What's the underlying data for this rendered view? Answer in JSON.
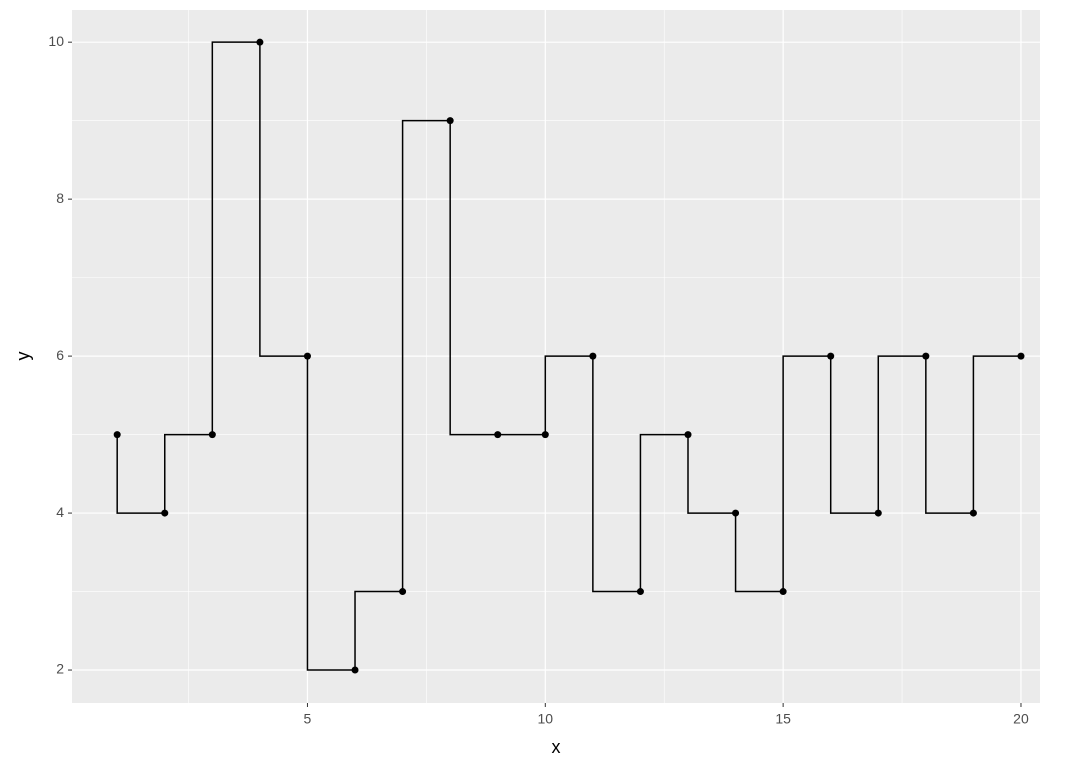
{
  "chart_data": {
    "type": "step",
    "x_label": "x",
    "y_label": "y",
    "x": [
      1,
      2,
      3,
      4,
      5,
      6,
      7,
      8,
      9,
      10,
      11,
      12,
      13,
      14,
      15,
      16,
      17,
      18,
      19,
      20
    ],
    "values": [
      5,
      4,
      5,
      10,
      6,
      2,
      3,
      9,
      5,
      5,
      6,
      3,
      5,
      4,
      3,
      6,
      4,
      6,
      4,
      6
    ],
    "color": "#000000",
    "xlim": [
      0.05,
      20.4
    ],
    "ylim": [
      1.58,
      10.41
    ],
    "xticks": [
      5,
      10,
      15,
      20
    ],
    "yticks": [
      2,
      4,
      6,
      8,
      10
    ],
    "minor_xticks": [
      2.5,
      7.5,
      12.5,
      17.5
    ],
    "minor_yticks": [
      3,
      5,
      7,
      9
    ],
    "grid": true
  }
}
